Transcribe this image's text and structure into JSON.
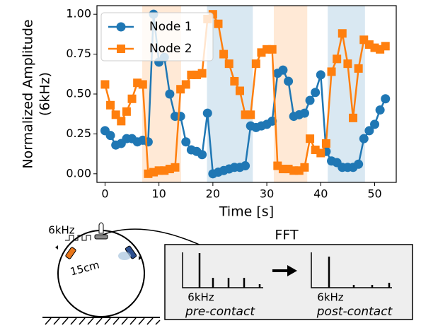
{
  "chart_data": {
    "type": "line",
    "ylabel": [
      "Normalized Amplitude",
      "(6kHz)"
    ],
    "xlabel": "Time [s]",
    "x": [
      0,
      1,
      2,
      3,
      4,
      5,
      6,
      7,
      8,
      9,
      10,
      11,
      12,
      13,
      14,
      15,
      16,
      17,
      18,
      19,
      20,
      21,
      22,
      23,
      24,
      25,
      26,
      27,
      28,
      29,
      30,
      31,
      32,
      33,
      34,
      35,
      36,
      37,
      38,
      39,
      40,
      41,
      42,
      43,
      44,
      45,
      46,
      47,
      48,
      49,
      50,
      51,
      52
    ],
    "series": [
      {
        "name": "Node 1",
        "color": "#1f77b4",
        "marker": "o",
        "values": [
          0.27,
          0.24,
          0.18,
          0.19,
          0.22,
          0.22,
          0.2,
          0.21,
          0.2,
          1.0,
          0.7,
          0.73,
          0.5,
          0.36,
          0.36,
          0.2,
          0.15,
          0.14,
          0.12,
          0.38,
          0.0,
          0.01,
          0.02,
          0.03,
          0.04,
          0.04,
          0.05,
          0.3,
          0.29,
          0.3,
          0.31,
          0.33,
          0.63,
          0.65,
          0.58,
          0.36,
          0.37,
          0.38,
          0.46,
          0.51,
          0.62,
          0.14,
          0.08,
          0.07,
          0.04,
          0.04,
          0.04,
          0.06,
          0.22,
          0.27,
          0.31,
          0.4,
          0.47
        ]
      },
      {
        "name": "Node 2",
        "color": "#ff7f0e",
        "marker": "s",
        "values": [
          0.56,
          0.43,
          0.37,
          0.33,
          0.39,
          0.47,
          0.57,
          0.56,
          0.0,
          0.01,
          0.02,
          0.02,
          0.03,
          0.04,
          0.53,
          0.56,
          0.62,
          0.62,
          0.63,
          0.97,
          1.0,
          0.94,
          0.75,
          0.69,
          0.58,
          0.52,
          0.37,
          0.37,
          0.69,
          0.76,
          0.78,
          0.78,
          0.05,
          0.03,
          0.03,
          0.02,
          0.02,
          0.04,
          0.22,
          0.15,
          0.13,
          0.19,
          0.64,
          0.72,
          0.88,
          0.69,
          0.35,
          0.66,
          0.84,
          0.81,
          0.79,
          0.78,
          0.8
        ]
      }
    ],
    "spans": [
      {
        "x": [
          6.9,
          14.1
        ],
        "color": "#ff7f0e"
      },
      {
        "x": [
          18.9,
          27.4
        ],
        "color": "#1f77b4"
      },
      {
        "x": [
          31.3,
          37.5
        ],
        "color": "#ff7f0e"
      },
      {
        "x": [
          41.3,
          48.2
        ],
        "color": "#1f77b4"
      }
    ],
    "xlim": [
      -1.5,
      54
    ],
    "ylim": [
      -0.054,
      1.054
    ],
    "xticks": [
      0,
      10,
      20,
      30,
      40,
      50
    ],
    "yticks": [
      {
        "value": 0,
        "label": "0.00"
      },
      {
        "value": 0.25,
        "label": "0.25"
      },
      {
        "value": 0.5,
        "label": "0.50"
      },
      {
        "value": 0.75,
        "label": "0.75"
      },
      {
        "value": 1,
        "label": "1.00"
      }
    ],
    "legend": "upper left"
  },
  "diagram": {
    "source_freq": "6kHz",
    "distance": "15cm",
    "fft_title": "FFT",
    "pre_freq": "6kHz",
    "pre_label": "pre-contact",
    "post_freq": "6kHz",
    "post_label": "post-contact"
  }
}
